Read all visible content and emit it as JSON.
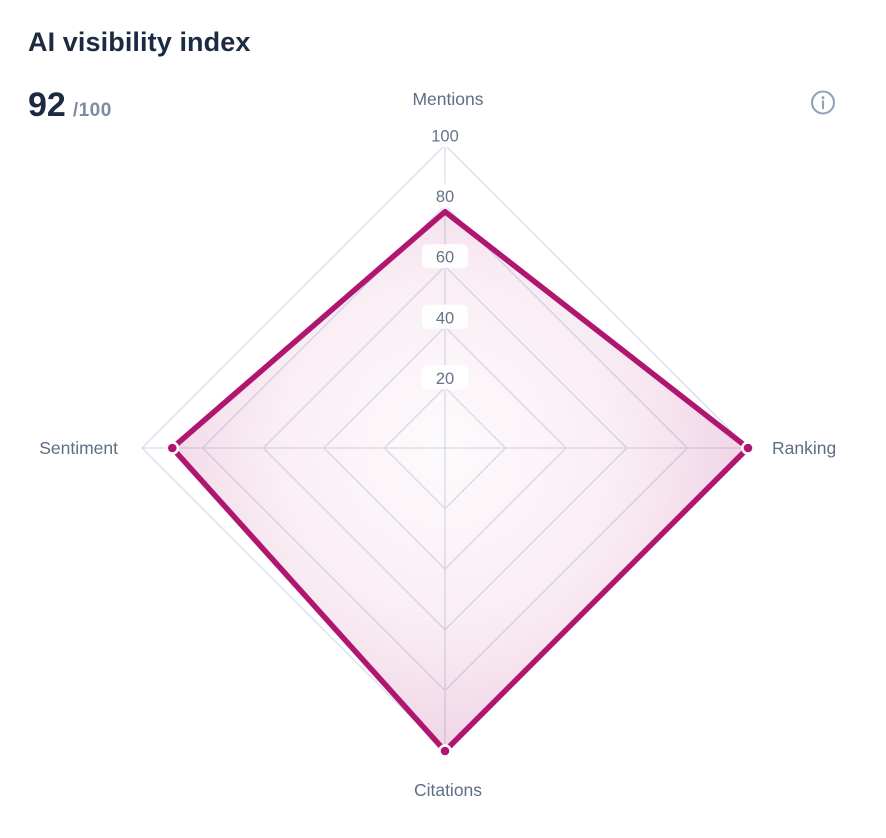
{
  "header": {
    "title": "AI visibility index",
    "score": "92",
    "score_suffix": "/100",
    "info_icon": "circle-info"
  },
  "chart_data": {
    "type": "radar",
    "title": "AI visibility index",
    "categories": [
      "Mentions",
      "Ranking",
      "Citations",
      "Sentiment"
    ],
    "series": [
      {
        "name": "AI visibility",
        "values": [
          78,
          100,
          100,
          90
        ]
      }
    ],
    "max": 100,
    "ticks": [
      20,
      40,
      60,
      80,
      100
    ],
    "tick_axis": "Mentions",
    "grid": true,
    "grid_shape": "polygon",
    "legend_position": "none",
    "show_point_dots": [
      false,
      true,
      true,
      true
    ],
    "colors": {
      "series_stroke": "#b01670",
      "series_fill_edge": "rgba(176,22,112,0.17)",
      "series_fill_center": "rgba(176,22,112,0.02)",
      "grid_line": "#d7dfec",
      "axis_label": "#5e6e87",
      "tick_label": "#64748b",
      "title_color": "#1d2b42",
      "score_muted": "#7c8ba1",
      "info_icon_color": "#93a2b7"
    }
  }
}
